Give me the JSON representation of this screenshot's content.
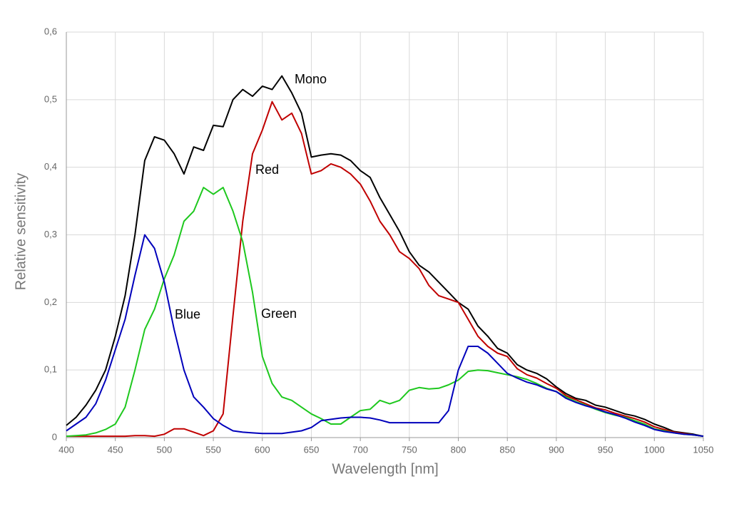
{
  "chart_data": {
    "type": "line",
    "xlabel": "Wavelength [nm]",
    "ylabel": "Relative sensitivity",
    "x": [
      400,
      410,
      420,
      430,
      440,
      450,
      460,
      470,
      480,
      490,
      500,
      510,
      520,
      530,
      540,
      550,
      560,
      570,
      580,
      590,
      600,
      610,
      620,
      630,
      640,
      650,
      660,
      670,
      680,
      690,
      700,
      710,
      720,
      730,
      740,
      750,
      760,
      770,
      780,
      790,
      800,
      810,
      820,
      830,
      840,
      850,
      860,
      870,
      880,
      890,
      900,
      910,
      920,
      930,
      940,
      950,
      960,
      970,
      980,
      990,
      1000,
      1010,
      1020,
      1030,
      1040,
      1050
    ],
    "series": [
      {
        "name": "Mono",
        "color": "#000000",
        "values": [
          0.018,
          0.03,
          0.048,
          0.07,
          0.1,
          0.15,
          0.21,
          0.3,
          0.41,
          0.445,
          0.44,
          0.42,
          0.39,
          0.43,
          0.425,
          0.462,
          0.46,
          0.5,
          0.515,
          0.505,
          0.52,
          0.515,
          0.535,
          0.51,
          0.48,
          0.415,
          0.418,
          0.42,
          0.418,
          0.41,
          0.395,
          0.385,
          0.355,
          0.33,
          0.305,
          0.275,
          0.255,
          0.245,
          0.23,
          0.215,
          0.2,
          0.19,
          0.165,
          0.15,
          0.132,
          0.125,
          0.108,
          0.1,
          0.095,
          0.087,
          0.075,
          0.065,
          0.058,
          0.055,
          0.048,
          0.045,
          0.04,
          0.035,
          0.032,
          0.027,
          0.02,
          0.015,
          0.009,
          0.007,
          0.005,
          0.002
        ]
      },
      {
        "name": "Red",
        "color": "#c00000",
        "values": [
          0.002,
          0.002,
          0.002,
          0.002,
          0.002,
          0.002,
          0.002,
          0.003,
          0.003,
          0.002,
          0.005,
          0.013,
          0.013,
          0.008,
          0.003,
          0.01,
          0.035,
          0.18,
          0.32,
          0.42,
          0.455,
          0.497,
          0.47,
          0.48,
          0.45,
          0.39,
          0.395,
          0.405,
          0.4,
          0.39,
          0.375,
          0.35,
          0.32,
          0.3,
          0.275,
          0.265,
          0.25,
          0.225,
          0.21,
          0.205,
          0.2,
          0.175,
          0.15,
          0.135,
          0.125,
          0.12,
          0.102,
          0.093,
          0.088,
          0.08,
          0.073,
          0.062,
          0.056,
          0.05,
          0.044,
          0.041,
          0.036,
          0.032,
          0.028,
          0.023,
          0.016,
          0.012,
          0.008,
          0.006,
          0.004,
          0.002
        ]
      },
      {
        "name": "Green",
        "color": "#1ec81e",
        "values": [
          0.002,
          0.003,
          0.004,
          0.007,
          0.012,
          0.02,
          0.045,
          0.1,
          0.16,
          0.19,
          0.235,
          0.27,
          0.32,
          0.335,
          0.37,
          0.36,
          0.37,
          0.335,
          0.29,
          0.215,
          0.12,
          0.08,
          0.06,
          0.055,
          0.045,
          0.035,
          0.028,
          0.02,
          0.02,
          0.03,
          0.04,
          0.042,
          0.055,
          0.05,
          0.055,
          0.07,
          0.074,
          0.072,
          0.073,
          0.078,
          0.085,
          0.098,
          0.1,
          0.099,
          0.096,
          0.093,
          0.09,
          0.086,
          0.08,
          0.073,
          0.068,
          0.06,
          0.053,
          0.048,
          0.042,
          0.037,
          0.033,
          0.03,
          0.025,
          0.02,
          0.013,
          0.01,
          0.007,
          0.005,
          0.004,
          0.002
        ]
      },
      {
        "name": "Blue",
        "color": "#0000bb",
        "values": [
          0.01,
          0.02,
          0.03,
          0.05,
          0.085,
          0.13,
          0.175,
          0.24,
          0.3,
          0.28,
          0.23,
          0.16,
          0.1,
          0.06,
          0.045,
          0.028,
          0.018,
          0.01,
          0.008,
          0.007,
          0.006,
          0.006,
          0.006,
          0.008,
          0.01,
          0.015,
          0.025,
          0.027,
          0.029,
          0.03,
          0.03,
          0.029,
          0.026,
          0.022,
          0.022,
          0.022,
          0.022,
          0.022,
          0.022,
          0.04,
          0.1,
          0.135,
          0.135,
          0.125,
          0.11,
          0.095,
          0.088,
          0.082,
          0.078,
          0.072,
          0.068,
          0.058,
          0.052,
          0.047,
          0.043,
          0.038,
          0.034,
          0.029,
          0.023,
          0.018,
          0.012,
          0.009,
          0.007,
          0.005,
          0.004,
          0.002
        ]
      }
    ],
    "xlim": [
      400,
      1050
    ],
    "xticks": [
      400,
      450,
      500,
      550,
      600,
      650,
      700,
      750,
      800,
      850,
      900,
      950,
      1000,
      1050
    ],
    "ylim": [
      0,
      0.6
    ],
    "yticks": [
      0,
      {
        "value": 0.1,
        "label": "0,1"
      },
      {
        "value": 0.2,
        "label": "0,2"
      },
      {
        "value": 0.3,
        "label": "0,3"
      },
      {
        "value": 0.4,
        "label": "0,4"
      },
      {
        "value": 0.5,
        "label": "0,5"
      },
      {
        "value": 0.6,
        "label": "0,6"
      }
    ],
    "grid": true
  }
}
